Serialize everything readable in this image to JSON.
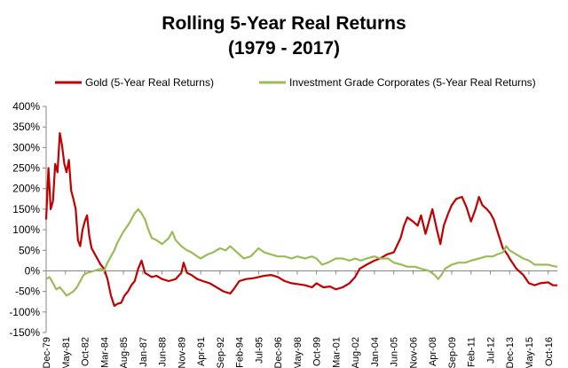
{
  "chart_data": {
    "type": "line",
    "title": "Rolling 5-Year Real Returns",
    "subtitle": "(1979 - 2017)",
    "ylim": [
      -150,
      400
    ],
    "y_ticks": [
      "400%",
      "350%",
      "300%",
      "250%",
      "200%",
      "150%",
      "100%",
      "50%",
      "0%",
      "-50%",
      "-100%",
      "-150%"
    ],
    "x_ticks": [
      "Dec-79",
      "May-81",
      "Oct-82",
      "Mar-84",
      "Aug-85",
      "Jan-87",
      "Jun-88",
      "Nov-89",
      "Apr-91",
      "Sep-92",
      "Feb-94",
      "Jul-95",
      "Dec-96",
      "May-98",
      "Oct-99",
      "Mar-01",
      "Aug-02",
      "Jan-04",
      "Jun-05",
      "Nov-06",
      "Apr-08",
      "Sep-09",
      "Feb-11",
      "Jul-12",
      "Dec-13",
      "May-15",
      "Oct-16"
    ],
    "x_start": "Dec-79",
    "x_end": "Jun-17",
    "grid": false,
    "legend_position": "top",
    "series": [
      {
        "name": "Gold (5-Year Real Returns)",
        "color": "#c00000",
        "points": [
          [
            "1979-12",
            125
          ],
          [
            "1980-02",
            250
          ],
          [
            "1980-04",
            150
          ],
          [
            "1980-06",
            170
          ],
          [
            "1980-08",
            260
          ],
          [
            "1980-10",
            240
          ],
          [
            "1980-12",
            335
          ],
          [
            "1981-02",
            305
          ],
          [
            "1981-04",
            260
          ],
          [
            "1981-06",
            240
          ],
          [
            "1981-08",
            270
          ],
          [
            "1981-10",
            195
          ],
          [
            "1981-12",
            175
          ],
          [
            "1982-02",
            150
          ],
          [
            "1982-04",
            75
          ],
          [
            "1982-06",
            60
          ],
          [
            "1982-08",
            100
          ],
          [
            "1982-10",
            120
          ],
          [
            "1982-12",
            135
          ],
          [
            "1983-02",
            85
          ],
          [
            "1983-04",
            55
          ],
          [
            "1983-06",
            45
          ],
          [
            "1983-08",
            35
          ],
          [
            "1983-10",
            25
          ],
          [
            "1983-12",
            15
          ],
          [
            "1984-03",
            5
          ],
          [
            "1984-06",
            -20
          ],
          [
            "1984-09",
            -60
          ],
          [
            "1984-12",
            -85
          ],
          [
            "1985-03",
            -80
          ],
          [
            "1985-06",
            -78
          ],
          [
            "1985-09",
            -60
          ],
          [
            "1985-12",
            -50
          ],
          [
            "1986-03",
            -35
          ],
          [
            "1986-06",
            -25
          ],
          [
            "1986-09",
            5
          ],
          [
            "1986-12",
            25
          ],
          [
            "1987-03",
            -5
          ],
          [
            "1987-06",
            -10
          ],
          [
            "1987-09",
            -15
          ],
          [
            "1988-01",
            -12
          ],
          [
            "1988-06",
            -20
          ],
          [
            "1988-12",
            -25
          ],
          [
            "1989-06",
            -20
          ],
          [
            "1989-11",
            -5
          ],
          [
            "1990-01",
            20
          ],
          [
            "1990-04",
            -5
          ],
          [
            "1990-08",
            -10
          ],
          [
            "1991-01",
            -20
          ],
          [
            "1991-06",
            -25
          ],
          [
            "1991-12",
            -30
          ],
          [
            "1992-06",
            -40
          ],
          [
            "1992-12",
            -50
          ],
          [
            "1993-06",
            -55
          ],
          [
            "1993-09",
            -45
          ],
          [
            "1994-02",
            -25
          ],
          [
            "1994-08",
            -20
          ],
          [
            "1995-02",
            -18
          ],
          [
            "1995-07",
            -15
          ],
          [
            "1995-12",
            -12
          ],
          [
            "1996-06",
            -10
          ],
          [
            "1996-12",
            -15
          ],
          [
            "1997-06",
            -25
          ],
          [
            "1997-12",
            -30
          ],
          [
            "1998-05",
            -32
          ],
          [
            "1998-12",
            -35
          ],
          [
            "1999-06",
            -40
          ],
          [
            "1999-10",
            -30
          ],
          [
            "2000-04",
            -40
          ],
          [
            "2000-10",
            -38
          ],
          [
            "2001-03",
            -45
          ],
          [
            "2001-09",
            -40
          ],
          [
            "2002-03",
            -30
          ],
          [
            "2002-08",
            -15
          ],
          [
            "2002-12",
            5
          ],
          [
            "2003-06",
            15
          ],
          [
            "2004-01",
            25
          ],
          [
            "2004-06",
            30
          ],
          [
            "2004-12",
            40
          ],
          [
            "2005-06",
            45
          ],
          [
            "2005-12",
            80
          ],
          [
            "2006-03",
            110
          ],
          [
            "2006-06",
            130
          ],
          [
            "2006-11",
            120
          ],
          [
            "2007-03",
            110
          ],
          [
            "2007-06",
            135
          ],
          [
            "2007-10",
            90
          ],
          [
            "2008-02",
            130
          ],
          [
            "2008-04",
            150
          ],
          [
            "2008-08",
            100
          ],
          [
            "2008-11",
            65
          ],
          [
            "2009-02",
            110
          ],
          [
            "2009-06",
            140
          ],
          [
            "2009-09",
            160
          ],
          [
            "2010-01",
            175
          ],
          [
            "2010-06",
            180
          ],
          [
            "2010-10",
            155
          ],
          [
            "2011-02",
            120
          ],
          [
            "2011-06",
            150
          ],
          [
            "2011-09",
            180
          ],
          [
            "2011-12",
            160
          ],
          [
            "2012-04",
            150
          ],
          [
            "2012-07",
            140
          ],
          [
            "2012-10",
            125
          ],
          [
            "2013-02",
            90
          ],
          [
            "2013-06",
            55
          ],
          [
            "2013-10",
            40
          ],
          [
            "2013-12",
            30
          ],
          [
            "2014-06",
            5
          ],
          [
            "2014-12",
            -10
          ],
          [
            "2015-05",
            -30
          ],
          [
            "2015-10",
            -35
          ],
          [
            "2016-03",
            -30
          ],
          [
            "2016-10",
            -28
          ],
          [
            "2017-02",
            -35
          ],
          [
            "2017-06",
            -35
          ]
        ]
      },
      {
        "name": "Investment Grade Corporates (5-Year Real Returns)",
        "color": "#9bbb59",
        "points": [
          [
            "1979-12",
            -20
          ],
          [
            "1980-03",
            -15
          ],
          [
            "1980-06",
            -30
          ],
          [
            "1980-09",
            -45
          ],
          [
            "1980-12",
            -40
          ],
          [
            "1981-03",
            -50
          ],
          [
            "1981-06",
            -60
          ],
          [
            "1981-09",
            -55
          ],
          [
            "1981-12",
            -50
          ],
          [
            "1982-03",
            -40
          ],
          [
            "1982-06",
            -25
          ],
          [
            "1982-09",
            -10
          ],
          [
            "1982-12",
            -5
          ],
          [
            "1983-06",
            0
          ],
          [
            "1983-12",
            5
          ],
          [
            "1984-03",
            0
          ],
          [
            "1984-06",
            20
          ],
          [
            "1984-12",
            50
          ],
          [
            "1985-03",
            70
          ],
          [
            "1985-08",
            95
          ],
          [
            "1986-01",
            115
          ],
          [
            "1986-06",
            140
          ],
          [
            "1986-09",
            150
          ],
          [
            "1986-12",
            140
          ],
          [
            "1987-03",
            125
          ],
          [
            "1987-06",
            100
          ],
          [
            "1987-09",
            80
          ],
          [
            "1988-01",
            75
          ],
          [
            "1988-06",
            65
          ],
          [
            "1988-12",
            80
          ],
          [
            "1989-03",
            95
          ],
          [
            "1989-06",
            75
          ],
          [
            "1989-11",
            60
          ],
          [
            "1990-04",
            50
          ],
          [
            "1990-08",
            45
          ],
          [
            "1991-01",
            35
          ],
          [
            "1991-04",
            30
          ],
          [
            "1991-10",
            40
          ],
          [
            "1992-03",
            45
          ],
          [
            "1992-09",
            55
          ],
          [
            "1993-02",
            50
          ],
          [
            "1993-06",
            60
          ],
          [
            "1993-12",
            45
          ],
          [
            "1994-06",
            30
          ],
          [
            "1994-12",
            35
          ],
          [
            "1995-07",
            55
          ],
          [
            "1995-12",
            45
          ],
          [
            "1996-06",
            40
          ],
          [
            "1996-12",
            35
          ],
          [
            "1997-06",
            35
          ],
          [
            "1997-12",
            30
          ],
          [
            "1998-05",
            35
          ],
          [
            "1998-12",
            30
          ],
          [
            "1999-06",
            35
          ],
          [
            "1999-10",
            30
          ],
          [
            "2000-03",
            15
          ],
          [
            "2000-08",
            20
          ],
          [
            "2001-03",
            30
          ],
          [
            "2001-09",
            30
          ],
          [
            "2002-03",
            25
          ],
          [
            "2002-08",
            30
          ],
          [
            "2003-01",
            25
          ],
          [
            "2003-06",
            30
          ],
          [
            "2004-01",
            35
          ],
          [
            "2004-06",
            30
          ],
          [
            "2005-01",
            30
          ],
          [
            "2005-06",
            20
          ],
          [
            "2006-01",
            15
          ],
          [
            "2006-06",
            10
          ],
          [
            "2007-01",
            10
          ],
          [
            "2007-06",
            5
          ],
          [
            "2008-01",
            0
          ],
          [
            "2008-06",
            -10
          ],
          [
            "2008-09",
            -20
          ],
          [
            "2008-12",
            -10
          ],
          [
            "2009-03",
            5
          ],
          [
            "2009-09",
            15
          ],
          [
            "2010-03",
            20
          ],
          [
            "2010-09",
            20
          ],
          [
            "2011-02",
            25
          ],
          [
            "2011-09",
            30
          ],
          [
            "2012-03",
            35
          ],
          [
            "2012-09",
            35
          ],
          [
            "2013-01",
            40
          ],
          [
            "2013-06",
            45
          ],
          [
            "2013-09",
            60
          ],
          [
            "2013-12",
            50
          ],
          [
            "2014-06",
            40
          ],
          [
            "2014-12",
            30
          ],
          [
            "2015-05",
            25
          ],
          [
            "2015-10",
            15
          ],
          [
            "2016-03",
            15
          ],
          [
            "2016-10",
            15
          ],
          [
            "2017-02",
            12
          ],
          [
            "2017-06",
            10
          ]
        ]
      }
    ]
  }
}
